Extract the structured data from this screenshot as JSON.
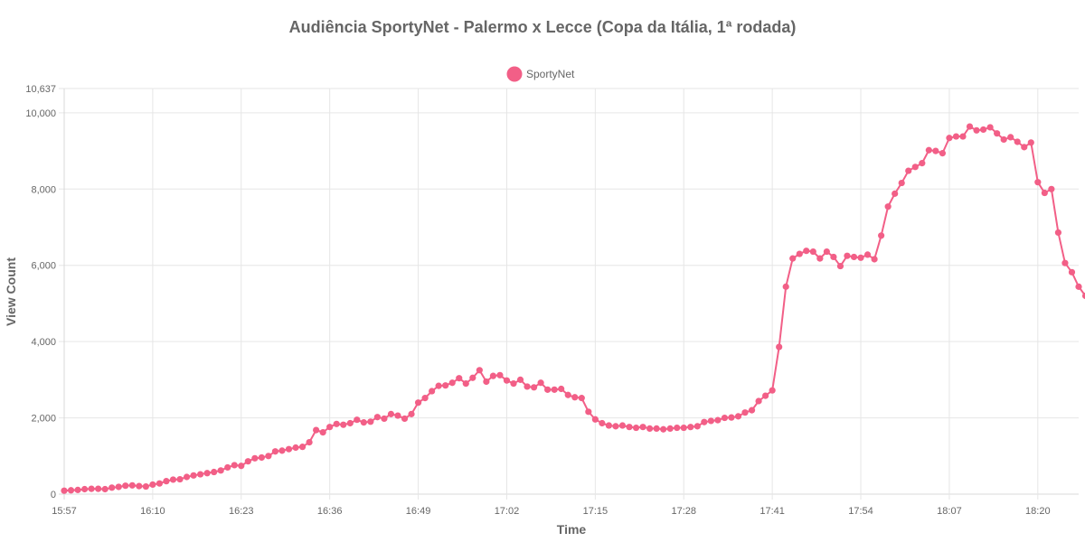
{
  "chart_data": {
    "type": "line",
    "title": "Audiência SportyNet - Palermo x Lecce (Copa da Itália, 1ª rodada)",
    "xlabel": "Time",
    "ylabel": "View Count",
    "legend": {
      "position": "top-center",
      "entries": [
        "SportyNet"
      ]
    },
    "grid": true,
    "ylim": [
      0,
      10637
    ],
    "yticks": [
      0,
      2000,
      4000,
      6000,
      8000,
      10000,
      10637
    ],
    "ytick_labels": [
      "0",
      "2,000",
      "4,000",
      "6,000",
      "8,000",
      "10,000",
      "10,637"
    ],
    "xlim": [
      "15:57",
      "18:26"
    ],
    "xticks": [
      "15:57",
      "16:10",
      "16:23",
      "16:36",
      "16:49",
      "17:02",
      "17:15",
      "17:28",
      "17:41",
      "17:54",
      "18:07",
      "18:20"
    ],
    "series": [
      {
        "name": "SportyNet",
        "color": "#f25f87",
        "points": [
          [
            "15:57",
            90
          ],
          [
            "15:58",
            100
          ],
          [
            "15:59",
            110
          ],
          [
            "16:00",
            130
          ],
          [
            "16:01",
            140
          ],
          [
            "16:02",
            140
          ],
          [
            "16:03",
            130
          ],
          [
            "16:04",
            170
          ],
          [
            "16:05",
            190
          ],
          [
            "16:06",
            220
          ],
          [
            "16:07",
            230
          ],
          [
            "16:08",
            210
          ],
          [
            "16:09",
            200
          ],
          [
            "16:10",
            250
          ],
          [
            "16:11",
            280
          ],
          [
            "16:12",
            340
          ],
          [
            "16:13",
            380
          ],
          [
            "16:14",
            390
          ],
          [
            "16:15",
            450
          ],
          [
            "16:16",
            490
          ],
          [
            "16:17",
            520
          ],
          [
            "16:18",
            550
          ],
          [
            "16:19",
            580
          ],
          [
            "16:20",
            620
          ],
          [
            "16:21",
            700
          ],
          [
            "16:22",
            760
          ],
          [
            "16:23",
            740
          ],
          [
            "16:24",
            860
          ],
          [
            "16:25",
            940
          ],
          [
            "16:26",
            960
          ],
          [
            "16:27",
            1000
          ],
          [
            "16:28",
            1120
          ],
          [
            "16:29",
            1140
          ],
          [
            "16:30",
            1180
          ],
          [
            "16:31",
            1220
          ],
          [
            "16:32",
            1240
          ],
          [
            "16:33",
            1360
          ],
          [
            "16:34",
            1680
          ],
          [
            "16:35",
            1620
          ],
          [
            "16:36",
            1760
          ],
          [
            "16:37",
            1840
          ],
          [
            "16:38",
            1820
          ],
          [
            "16:39",
            1860
          ],
          [
            "16:40",
            1950
          ],
          [
            "16:41",
            1880
          ],
          [
            "16:42",
            1900
          ],
          [
            "16:43",
            2020
          ],
          [
            "16:44",
            1980
          ],
          [
            "16:45",
            2100
          ],
          [
            "16:46",
            2060
          ],
          [
            "16:47",
            1980
          ],
          [
            "16:48",
            2100
          ],
          [
            "16:49",
            2400
          ],
          [
            "16:50",
            2520
          ],
          [
            "16:51",
            2700
          ],
          [
            "16:52",
            2840
          ],
          [
            "16:53",
            2850
          ],
          [
            "16:54",
            2920
          ],
          [
            "16:55",
            3040
          ],
          [
            "16:56",
            2900
          ],
          [
            "16:57",
            3050
          ],
          [
            "16:58",
            3250
          ],
          [
            "16:59",
            2950
          ],
          [
            "17:00",
            3100
          ],
          [
            "17:01",
            3120
          ],
          [
            "17:02",
            2980
          ],
          [
            "17:03",
            2900
          ],
          [
            "17:04",
            3000
          ],
          [
            "17:05",
            2820
          ],
          [
            "17:06",
            2800
          ],
          [
            "17:07",
            2920
          ],
          [
            "17:08",
            2740
          ],
          [
            "17:09",
            2740
          ],
          [
            "17:10",
            2760
          ],
          [
            "17:11",
            2600
          ],
          [
            "17:12",
            2540
          ],
          [
            "17:13",
            2520
          ],
          [
            "17:14",
            2160
          ],
          [
            "17:15",
            1960
          ],
          [
            "17:16",
            1860
          ],
          [
            "17:17",
            1800
          ],
          [
            "17:18",
            1780
          ],
          [
            "17:19",
            1800
          ],
          [
            "17:20",
            1760
          ],
          [
            "17:21",
            1740
          ],
          [
            "17:22",
            1760
          ],
          [
            "17:23",
            1720
          ],
          [
            "17:24",
            1720
          ],
          [
            "17:25",
            1700
          ],
          [
            "17:26",
            1720
          ],
          [
            "17:27",
            1740
          ],
          [
            "17:28",
            1740
          ],
          [
            "17:29",
            1760
          ],
          [
            "17:30",
            1780
          ],
          [
            "17:31",
            1890
          ],
          [
            "17:32",
            1920
          ],
          [
            "17:33",
            1940
          ],
          [
            "17:34",
            2000
          ],
          [
            "17:35",
            2010
          ],
          [
            "17:36",
            2040
          ],
          [
            "17:37",
            2140
          ],
          [
            "17:38",
            2200
          ],
          [
            "17:39",
            2440
          ],
          [
            "17:40",
            2580
          ],
          [
            "17:41",
            2720
          ],
          [
            "17:42",
            3860
          ],
          [
            "17:43",
            5440
          ],
          [
            "17:44",
            6180
          ],
          [
            "17:45",
            6300
          ],
          [
            "17:46",
            6380
          ],
          [
            "17:47",
            6360
          ],
          [
            "17:48",
            6180
          ],
          [
            "17:49",
            6360
          ],
          [
            "17:50",
            6220
          ],
          [
            "17:51",
            5980
          ],
          [
            "17:52",
            6250
          ],
          [
            "17:53",
            6220
          ],
          [
            "17:54",
            6200
          ],
          [
            "17:55",
            6280
          ],
          [
            "17:56",
            6160
          ],
          [
            "17:57",
            6780
          ],
          [
            "17:58",
            7540
          ],
          [
            "17:59",
            7880
          ],
          [
            "18:00",
            8160
          ],
          [
            "18:01",
            8480
          ],
          [
            "18:02",
            8580
          ],
          [
            "18:03",
            8680
          ],
          [
            "18:04",
            9020
          ],
          [
            "18:05",
            9000
          ],
          [
            "18:06",
            8940
          ],
          [
            "18:07",
            9340
          ],
          [
            "18:08",
            9380
          ],
          [
            "18:09",
            9380
          ],
          [
            "18:10",
            9640
          ],
          [
            "18:11",
            9540
          ],
          [
            "18:12",
            9560
          ],
          [
            "18:13",
            9620
          ],
          [
            "18:14",
            9460
          ],
          [
            "18:15",
            9300
          ],
          [
            "18:16",
            9360
          ],
          [
            "18:17",
            9240
          ],
          [
            "18:18",
            9100
          ],
          [
            "18:19",
            9220
          ],
          [
            "18:20",
            8180
          ],
          [
            "18:21",
            7900
          ],
          [
            "18:22",
            8000
          ],
          [
            "18:23",
            6860
          ],
          [
            "18:24",
            6060
          ],
          [
            "18:25",
            5820
          ],
          [
            "18:26",
            5440
          ],
          [
            "18:27",
            5200
          ]
        ]
      }
    ]
  }
}
